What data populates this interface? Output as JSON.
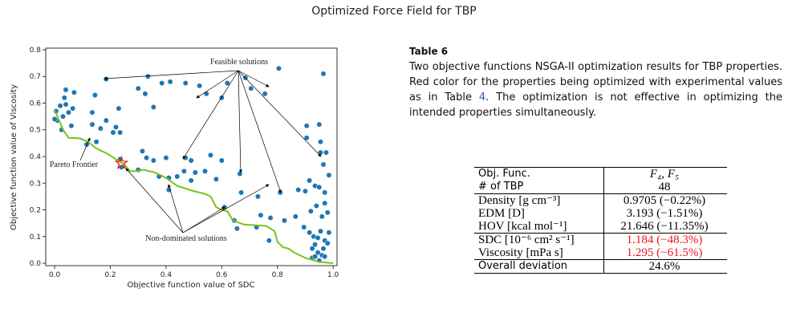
{
  "title": "Optimized Force Field for TBP",
  "chart_data": {
    "type": "scatter",
    "x_label": "Objective function value of SDC",
    "y_label": "Objective function value of Viscosity",
    "xlim": [
      -0.032,
      1.014
    ],
    "ylim": [
      -0.009,
      0.806
    ],
    "xticks": [
      {
        "value": 0,
        "label": "0.0"
      },
      0.2,
      0.4,
      0.6,
      0.8,
      {
        "value": 1,
        "label": "1.0"
      }
    ],
    "yticks": [
      {
        "value": 0,
        "label": "0.0"
      },
      0.1,
      0.2,
      0.3,
      0.4,
      0.5,
      0.6,
      0.7,
      0.8
    ],
    "series": [
      {
        "type": "scatter",
        "color": "#1f77b4",
        "x": [
          0.005,
          0.02,
          0.035,
          0.04,
          0.05,
          0.03,
          0.01,
          0.065,
          0.07,
          0.025,
          0.06,
          0.04,
          0,
          0.145,
          0.135,
          0.165,
          0.185,
          0.21,
          0.22,
          0.235,
          0.23,
          0.15,
          0.115,
          0.135,
          0.235,
          0.24,
          0.185,
          0.3,
          0.325,
          0.335,
          0.355,
          0.385,
          0.415,
          0.47,
          0.52,
          0.545,
          0.6,
          0.62,
          0.685,
          0.705,
          0.805,
          0.965,
          0.755,
          0.315,
          0.33,
          0.3,
          0.355,
          0.4,
          0.375,
          0.41,
          0.44,
          0.465,
          0.47,
          0.49,
          0.505,
          0.49,
          0.56,
          0.6,
          0.665,
          0.67,
          0.73,
          0.58,
          0.41,
          0.54,
          0.61,
          0.645,
          0.655,
          0.74,
          0.725,
          0.775,
          0.77,
          0.81,
          0.825,
          0.865,
          0.875,
          0.9,
          0.915,
          0.92,
          0.935,
          0.95,
          0.97,
          0.97,
          0.94,
          0.96,
          0.895,
          0.915,
          0.93,
          0.945,
          0.955,
          0.97,
          0.935,
          0.925,
          0.945,
          0.96,
          0.97,
          0.925,
          0.95,
          0.965,
          0.98,
          0.905,
          0.95,
          0.905,
          0.955,
          0.955,
          0.975,
          0.985,
          0.965,
          0.935,
          0.985,
          0.98
        ],
        "values": [
          0.57,
          0.59,
          0.62,
          0.595,
          0.565,
          0.55,
          0.535,
          0.58,
          0.64,
          0.5,
          0.515,
          0.65,
          0.54,
          0.63,
          0.52,
          0.505,
          0.535,
          0.49,
          0.51,
          0.49,
          0.58,
          0.455,
          0.445,
          0.565,
          0.39,
          0.36,
          0.69,
          0.655,
          0.635,
          0.7,
          0.585,
          0.675,
          0.68,
          0.675,
          0.665,
          0.635,
          0.62,
          0.675,
          0.695,
          0.655,
          0.73,
          0.71,
          0.635,
          0.42,
          0.395,
          0.35,
          0.385,
          0.395,
          0.325,
          0.32,
          0.325,
          0.345,
          0.395,
          0.385,
          0.34,
          0.31,
          0.405,
          0.385,
          0.335,
          0.265,
          0.25,
          0.315,
          0.275,
          0.345,
          0.21,
          0.16,
          0.13,
          0.18,
          0.135,
          0.17,
          0.085,
          0.265,
          0.16,
          0.175,
          0.275,
          0.27,
          0.31,
          0.195,
          0.29,
          0.285,
          0.265,
          0.225,
          0.215,
          0.175,
          0.135,
          0.115,
          0.1,
          0.095,
          0.12,
          0.085,
          0.07,
          0.055,
          0.04,
          0.03,
          0.025,
          0.02,
          0.01,
          0.055,
          0.075,
          0.515,
          0.52,
          0.47,
          0.455,
          0.415,
          0.415,
          0.33,
          0.37,
          0.025,
          0.115,
          0.19
        ]
      },
      {
        "type": "line",
        "color": "#76c41d",
        "x": [
          0,
          0.03,
          0.05,
          0.09,
          0.12,
          0.15,
          0.19,
          0.22,
          0.25,
          0.27,
          0.29,
          0.32,
          0.34,
          0.36,
          0.4,
          0.44,
          0.5,
          0.54,
          0.56,
          0.58,
          0.6,
          0.62,
          0.64,
          0.68,
          0.76,
          0.79,
          0.8,
          0.82,
          0.84,
          0.86,
          0.9,
          0.95,
          1.0
        ],
        "values": [
          0.575,
          0.5,
          0.47,
          0.468,
          0.455,
          0.43,
          0.41,
          0.39,
          0.37,
          0.345,
          0.345,
          0.35,
          0.345,
          0.34,
          0.32,
          0.29,
          0.27,
          0.26,
          0.25,
          0.21,
          0.2,
          0.195,
          0.16,
          0.145,
          0.14,
          0.12,
          0.08,
          0.06,
          0.055,
          0.04,
          0.02,
          0.005,
          0
        ]
      },
      {
        "type": "star",
        "color": "#e8161b",
        "x": [
          0.24
        ],
        "values": [
          0.375
        ]
      }
    ],
    "annotations": [
      "Feasible solutions",
      "Pareto Frontier",
      "Non-dominated solutions"
    ]
  },
  "caption": {
    "label": "Table 6",
    "text": [
      "Two objective functions NSGA-II optimization results for TBP properties. Red color for the properties being optimized with experimental values as in Table ",
      "4",
      ". The optimization is not effective in optimizing the intended properties simultaneously."
    ]
  },
  "table": {
    "highlight_rows": [
      5,
      6
    ],
    "highlight_color": "#e8161b",
    "rows": [
      [
        "Obj. Func.",
        "F₄, F₅"
      ],
      [
        "# of TBP",
        "48"
      ],
      [
        "Density [g cm⁻³]",
        "0.9705 (−0.22%)"
      ],
      [
        "EDM [D]",
        "3.193 (−1.51%)"
      ],
      [
        "HOV [kcal mol⁻¹]",
        "21.646 (−11.35%)"
      ],
      [
        "SDC [10⁻⁶ cm² s⁻¹]",
        "1.184 (−48.3%)"
      ],
      [
        "Viscosity [mPa s]",
        "1.295 (−61.5%)"
      ],
      [
        "Overall deviation",
        "24.6%"
      ]
    ]
  }
}
